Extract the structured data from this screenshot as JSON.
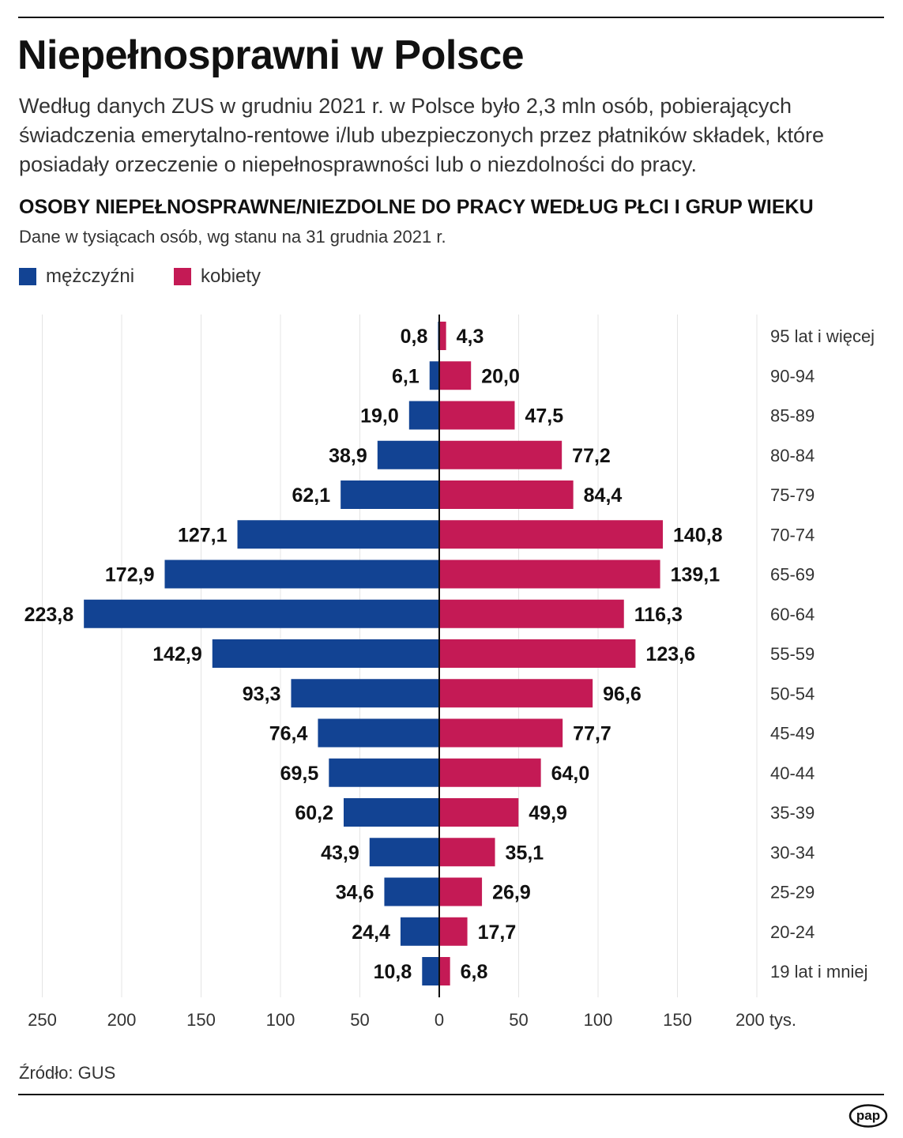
{
  "header": {
    "title": "Niepełnosprawni w Polsce",
    "intro": "Według danych ZUS w grudniu 2021 r. w Polsce było 2,3 mln osób, pobierających świadczenia emerytalno-rentowe i/lub ubezpieczonych przez płatników składek, które posiadały orzeczenie o niepełnosprawności lub o niezdolności do pracy."
  },
  "chart_data": {
    "type": "bar",
    "orientation": "horizontal-population-pyramid",
    "title": "OSOBY NIEPEŁNOSPRAWNE/NIEZDOLNE DO PRACY WEDŁUG PŁCI I GRUP WIEKU",
    "subtitle": "Dane w tysiącach osób, wg stanu na 31 grudnia 2021 r.",
    "categories": [
      "95 lat i więcej",
      "90-94",
      "85-89",
      "80-84",
      "75-79",
      "70-74",
      "65-69",
      "60-64",
      "55-59",
      "50-54",
      "45-49",
      "40-44",
      "35-39",
      "30-34",
      "25-29",
      "20-24",
      "19 lat i mniej"
    ],
    "series": [
      {
        "name": "mężczyźni",
        "color": "#124393",
        "side": "left",
        "values": [
          0.8,
          6.1,
          19.0,
          38.9,
          62.1,
          127.1,
          172.9,
          223.8,
          142.9,
          93.3,
          76.4,
          69.5,
          60.2,
          43.9,
          34.6,
          24.4,
          10.8
        ],
        "labels": [
          "0,8",
          "6,1",
          "19,0",
          "38,9",
          "62,1",
          "127,1",
          "172,9",
          "223,8",
          "142,9",
          "93,3",
          "76,4",
          "69,5",
          "60,2",
          "43,9",
          "34,6",
          "24,4",
          "10,8"
        ]
      },
      {
        "name": "kobiety",
        "color": "#c41a55",
        "side": "right",
        "values": [
          4.3,
          20.0,
          47.5,
          77.2,
          84.4,
          140.8,
          139.1,
          116.3,
          123.6,
          96.6,
          77.7,
          64.0,
          49.9,
          35.1,
          26.9,
          17.7,
          6.8
        ],
        "labels": [
          "4,3",
          "20,0",
          "47,5",
          "77,2",
          "84,4",
          "140,8",
          "139,1",
          "116,3",
          "123,6",
          "96,6",
          "77,7",
          "64,0",
          "49,9",
          "35,1",
          "26,9",
          "17,7",
          "6,8"
        ]
      }
    ],
    "xlim_left": [
      250,
      0
    ],
    "xlim_right": [
      0,
      200
    ],
    "x_ticks": [
      -250,
      -200,
      -150,
      -100,
      -50,
      0,
      50,
      100,
      150,
      200
    ],
    "x_tick_labels": [
      "250",
      "200",
      "150",
      "100",
      "50",
      "0",
      "50",
      "100",
      "150",
      "200 tys."
    ],
    "grid": "vertical",
    "legend": "top-left"
  },
  "footer": {
    "source": "Źródło: GUS",
    "logo": "pap"
  }
}
